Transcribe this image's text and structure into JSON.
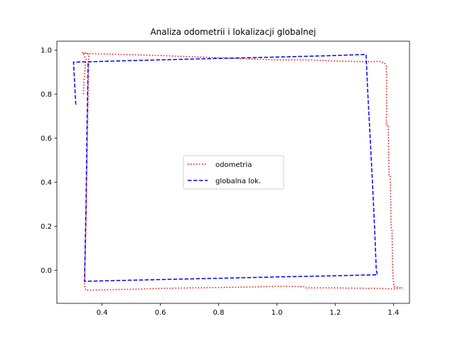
{
  "chart_data": {
    "type": "line",
    "title": "Analiza odometrii i lokalizacji globalnej",
    "xlabel": "",
    "ylabel": "",
    "xlim": [
      0.245,
      1.455
    ],
    "ylim": [
      -0.15,
      1.04
    ],
    "x_ticks": [
      0.4,
      0.6,
      0.8,
      1.0,
      1.2,
      1.4
    ],
    "x_tick_labels": [
      "0.4",
      "0.6",
      "0.8",
      "1.0",
      "1.2",
      "1.4"
    ],
    "y_ticks": [
      0.0,
      0.2,
      0.4,
      0.6,
      0.8,
      1.0
    ],
    "y_tick_labels": [
      "0.0",
      "0.2",
      "0.4",
      "0.6",
      "0.8",
      "1.0"
    ],
    "grid": false,
    "legend_position": "center",
    "series": [
      {
        "name": "odometria",
        "color": "#ff0000",
        "style": "dotted",
        "points": [
          [
            0.336,
            0.8
          ],
          [
            0.338,
            0.86
          ],
          [
            0.342,
            0.92
          ],
          [
            0.345,
            0.96
          ],
          [
            0.334,
            0.985
          ],
          [
            0.6,
            0.975
          ],
          [
            0.8,
            0.965
          ],
          [
            1.0,
            0.955
          ],
          [
            1.12,
            0.955
          ],
          [
            1.2,
            0.95
          ],
          [
            1.3,
            0.947
          ],
          [
            1.355,
            0.948
          ],
          [
            1.37,
            0.94
          ],
          [
            1.375,
            0.93
          ],
          [
            1.376,
            0.9
          ],
          [
            1.377,
            0.86
          ],
          [
            1.376,
            0.8
          ],
          [
            1.377,
            0.73
          ],
          [
            1.375,
            0.66
          ],
          [
            1.382,
            0.66
          ],
          [
            1.383,
            0.57
          ],
          [
            1.384,
            0.5
          ],
          [
            1.385,
            0.43
          ],
          [
            1.389,
            0.43
          ],
          [
            1.39,
            0.35
          ],
          [
            1.391,
            0.28
          ],
          [
            1.392,
            0.19
          ],
          [
            1.395,
            0.18
          ],
          [
            1.396,
            0.1
          ],
          [
            1.397,
            0.02
          ],
          [
            1.399,
            -0.04
          ],
          [
            1.402,
            -0.075
          ],
          [
            1.432,
            -0.08
          ],
          [
            1.4,
            -0.085
          ],
          [
            1.35,
            -0.082
          ],
          [
            1.2,
            -0.08
          ],
          [
            1.1,
            -0.08
          ],
          [
            1.095,
            -0.074
          ],
          [
            1.0,
            -0.073
          ],
          [
            0.9,
            -0.076
          ],
          [
            0.8,
            -0.078
          ],
          [
            0.7,
            -0.08
          ],
          [
            0.6,
            -0.082
          ],
          [
            0.5,
            -0.086
          ],
          [
            0.42,
            -0.088
          ],
          [
            0.344,
            -0.09
          ],
          [
            0.34,
            -0.07
          ],
          [
            0.341,
            0.0
          ],
          [
            0.343,
            0.1
          ],
          [
            0.345,
            0.2
          ],
          [
            0.346,
            0.3
          ],
          [
            0.347,
            0.38
          ],
          [
            0.348,
            0.42
          ],
          [
            0.349,
            0.5
          ],
          [
            0.35,
            0.6
          ],
          [
            0.351,
            0.7
          ],
          [
            0.352,
            0.8
          ],
          [
            0.353,
            0.88
          ],
          [
            0.354,
            0.94
          ],
          [
            0.355,
            0.98
          ],
          [
            0.34,
            0.988
          ],
          [
            0.332,
            0.988
          ]
        ]
      },
      {
        "name": "globalna lok.",
        "color": "#0000ff",
        "style": "dashed",
        "points": [
          [
            0.31,
            0.752
          ],
          [
            0.302,
            0.945
          ],
          [
            0.5,
            0.952
          ],
          [
            0.8,
            0.962
          ],
          [
            1.0,
            0.968
          ],
          [
            1.2,
            0.975
          ],
          [
            1.306,
            0.98
          ],
          [
            1.312,
            0.8
          ],
          [
            1.32,
            0.6
          ],
          [
            1.328,
            0.4
          ],
          [
            1.335,
            0.2
          ],
          [
            1.341,
            0.0
          ],
          [
            1.345,
            -0.02
          ],
          [
            1.2,
            -0.025
          ],
          [
            1.0,
            -0.03
          ],
          [
            0.8,
            -0.036
          ],
          [
            0.6,
            -0.042
          ],
          [
            0.4,
            -0.048
          ],
          [
            0.34,
            -0.05
          ],
          [
            0.342,
            0.1
          ],
          [
            0.345,
            0.3
          ],
          [
            0.347,
            0.5
          ],
          [
            0.349,
            0.7
          ],
          [
            0.351,
            0.85
          ],
          [
            0.352,
            0.945
          ]
        ]
      }
    ]
  }
}
